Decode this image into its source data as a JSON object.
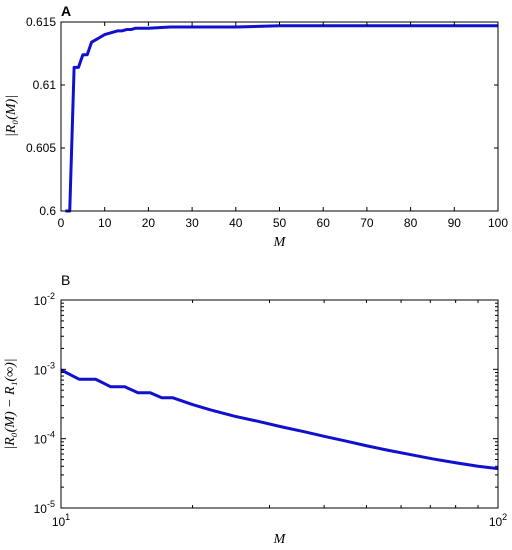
{
  "chart_data": [
    {
      "panel_label": "A",
      "type": "line",
      "xlabel": "M",
      "ylabel": "|R₀(M)|",
      "xlim": [
        0,
        100
      ],
      "ylim": [
        0.6,
        0.615
      ],
      "x_scale": "linear",
      "y_scale": "linear",
      "x_ticks": [
        0,
        10,
        20,
        30,
        40,
        50,
        60,
        70,
        80,
        90,
        100
      ],
      "x_tick_labels": [
        "0",
        "10",
        "20",
        "30",
        "40",
        "50",
        "60",
        "70",
        "80",
        "90",
        "100"
      ],
      "y_ticks": [
        0.6,
        0.605,
        0.61,
        0.615
      ],
      "y_tick_labels": [
        "0.6",
        "0.605",
        "0.61",
        "0.615"
      ],
      "grid": false,
      "color": "#1010d0",
      "series": [
        {
          "x": [
            1,
            2,
            3,
            4,
            5,
            6,
            7,
            8,
            9,
            10,
            11,
            12,
            13,
            14,
            15,
            16,
            17,
            18,
            19,
            20,
            25,
            30,
            40,
            50,
            60,
            70,
            80,
            90,
            100
          ],
          "y": [
            0.6,
            0.6,
            0.6114,
            0.6114,
            0.6124,
            0.6124,
            0.6134,
            0.6136,
            0.6138,
            0.614,
            0.6141,
            0.6142,
            0.6143,
            0.6143,
            0.6144,
            0.6144,
            0.6145,
            0.6145,
            0.6145,
            0.6145,
            0.6146,
            0.6146,
            0.6146,
            0.6147,
            0.6147,
            0.6147,
            0.6147,
            0.6147,
            0.6147
          ]
        }
      ]
    },
    {
      "panel_label": "B",
      "type": "line",
      "xlabel": "M",
      "ylabel": "|R₀(M) − R₁(∞)|",
      "xlim": [
        10,
        100
      ],
      "ylim": [
        1e-05,
        0.01
      ],
      "x_scale": "log",
      "y_scale": "log",
      "x_ticks": [
        10,
        100
      ],
      "x_tick_labels": [
        {
          "base": "10",
          "exp": "1"
        },
        {
          "base": "10",
          "exp": "2"
        }
      ],
      "y_ticks": [
        1e-05,
        0.0001,
        0.001,
        0.01
      ],
      "y_tick_labels": [
        {
          "base": "10",
          "exp": "-5"
        },
        {
          "base": "10",
          "exp": "-4"
        },
        {
          "base": "10",
          "exp": "-3"
        },
        {
          "base": "10",
          "exp": "-2"
        }
      ],
      "grid": false,
      "color": "#1010d0",
      "series": [
        {
          "x": [
            10,
            11,
            12,
            13,
            14,
            15,
            16,
            17,
            18,
            20,
            22,
            25,
            28,
            32,
            36,
            40,
            45,
            50,
            56,
            63,
            71,
            80,
            90,
            100
          ],
          "y": [
            0.00098,
            0.00072,
            0.00072,
            0.00056,
            0.00056,
            0.00046,
            0.00046,
            0.00039,
            0.00039,
            0.00031,
            0.00026,
            0.00021,
            0.00018,
            0.000148,
            0.000126,
            0.000108,
            9.2e-05,
            7.9e-05,
            6.8e-05,
            5.9e-05,
            5.1e-05,
            4.5e-05,
            4e-05,
            3.7e-05
          ]
        }
      ]
    }
  ]
}
